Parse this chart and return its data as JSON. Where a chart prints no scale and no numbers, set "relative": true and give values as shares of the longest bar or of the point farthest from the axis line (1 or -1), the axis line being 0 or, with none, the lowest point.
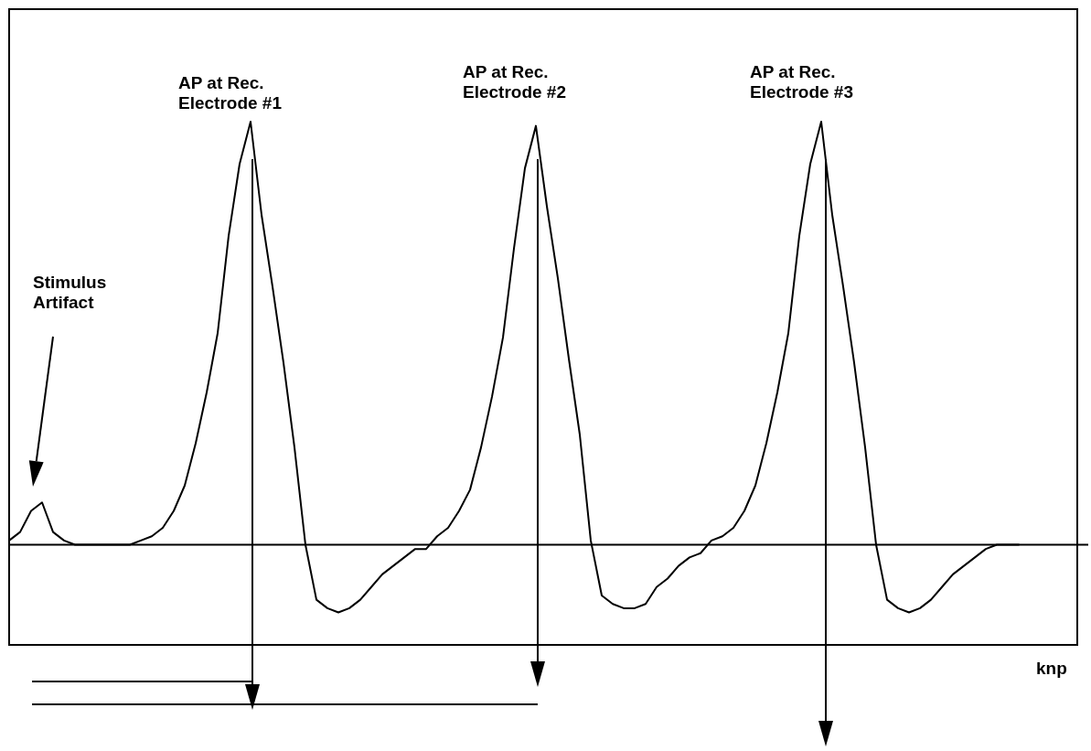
{
  "chart_data": {
    "type": "line",
    "relative": true,
    "legend": false,
    "marker": "none",
    "line_style": "solid",
    "categories": [
      null,
      null,
      null,
      null,
      null,
      null,
      null,
      null,
      null,
      null,
      null,
      null,
      null,
      null,
      null,
      null,
      null,
      null,
      null,
      null,
      null,
      null,
      null,
      null,
      null,
      null,
      null,
      null,
      null,
      null,
      null,
      null,
      null,
      null,
      null,
      null,
      null,
      null,
      null,
      null,
      null,
      null,
      null,
      null,
      null,
      null,
      null,
      null,
      null,
      null,
      null,
      null,
      null,
      null,
      null,
      null,
      null,
      null,
      null,
      null,
      null,
      null,
      null,
      null,
      null,
      null,
      null,
      null,
      null,
      null,
      null,
      null,
      null,
      null,
      null,
      null,
      null,
      null,
      null,
      null,
      null,
      null,
      null,
      null,
      null,
      null,
      null,
      null,
      null,
      null,
      null,
      null,
      null
    ],
    "series": [
      {
        "color": "#000000",
        "values": [
          0.01,
          0.03,
          0.08,
          0.1,
          0.03,
          0.01,
          0,
          0,
          0,
          0,
          0,
          0,
          0.01,
          0.02,
          0.04,
          0.08,
          0.14,
          0.24,
          0.36,
          0.5,
          0.73,
          0.9,
          1,
          0.78,
          0.61,
          0.43,
          0.23,
          0,
          -0.13,
          -0.15,
          -0.16,
          -0.15,
          -0.13,
          -0.1,
          -0.07,
          -0.05,
          -0.03,
          -0.01,
          -0.01,
          0.02,
          0.04,
          0.08,
          0.13,
          0.23,
          0.35,
          0.49,
          0.7,
          0.89,
          0.99,
          0.8,
          0.63,
          0.44,
          0.26,
          0.01,
          -0.12,
          -0.14,
          -0.15,
          -0.15,
          -0.14,
          -0.1,
          -0.08,
          -0.05,
          -0.03,
          -0.02,
          0.01,
          0.02,
          0.04,
          0.08,
          0.14,
          0.24,
          0.36,
          0.5,
          0.73,
          0.9,
          1,
          0.78,
          0.61,
          0.43,
          0.23,
          0,
          -0.13,
          -0.15,
          -0.16,
          -0.15,
          -0.13,
          -0.1,
          -0.07,
          -0.05,
          -0.03,
          -0.01,
          0,
          0,
          0
        ]
      }
    ],
    "annotations": [
      "AP at Rec. Electrode #1",
      "AP at Rec. Electrode #2",
      "AP at Rec. Electrode #3",
      "Stimulus Artifact",
      "knp"
    ]
  }
}
